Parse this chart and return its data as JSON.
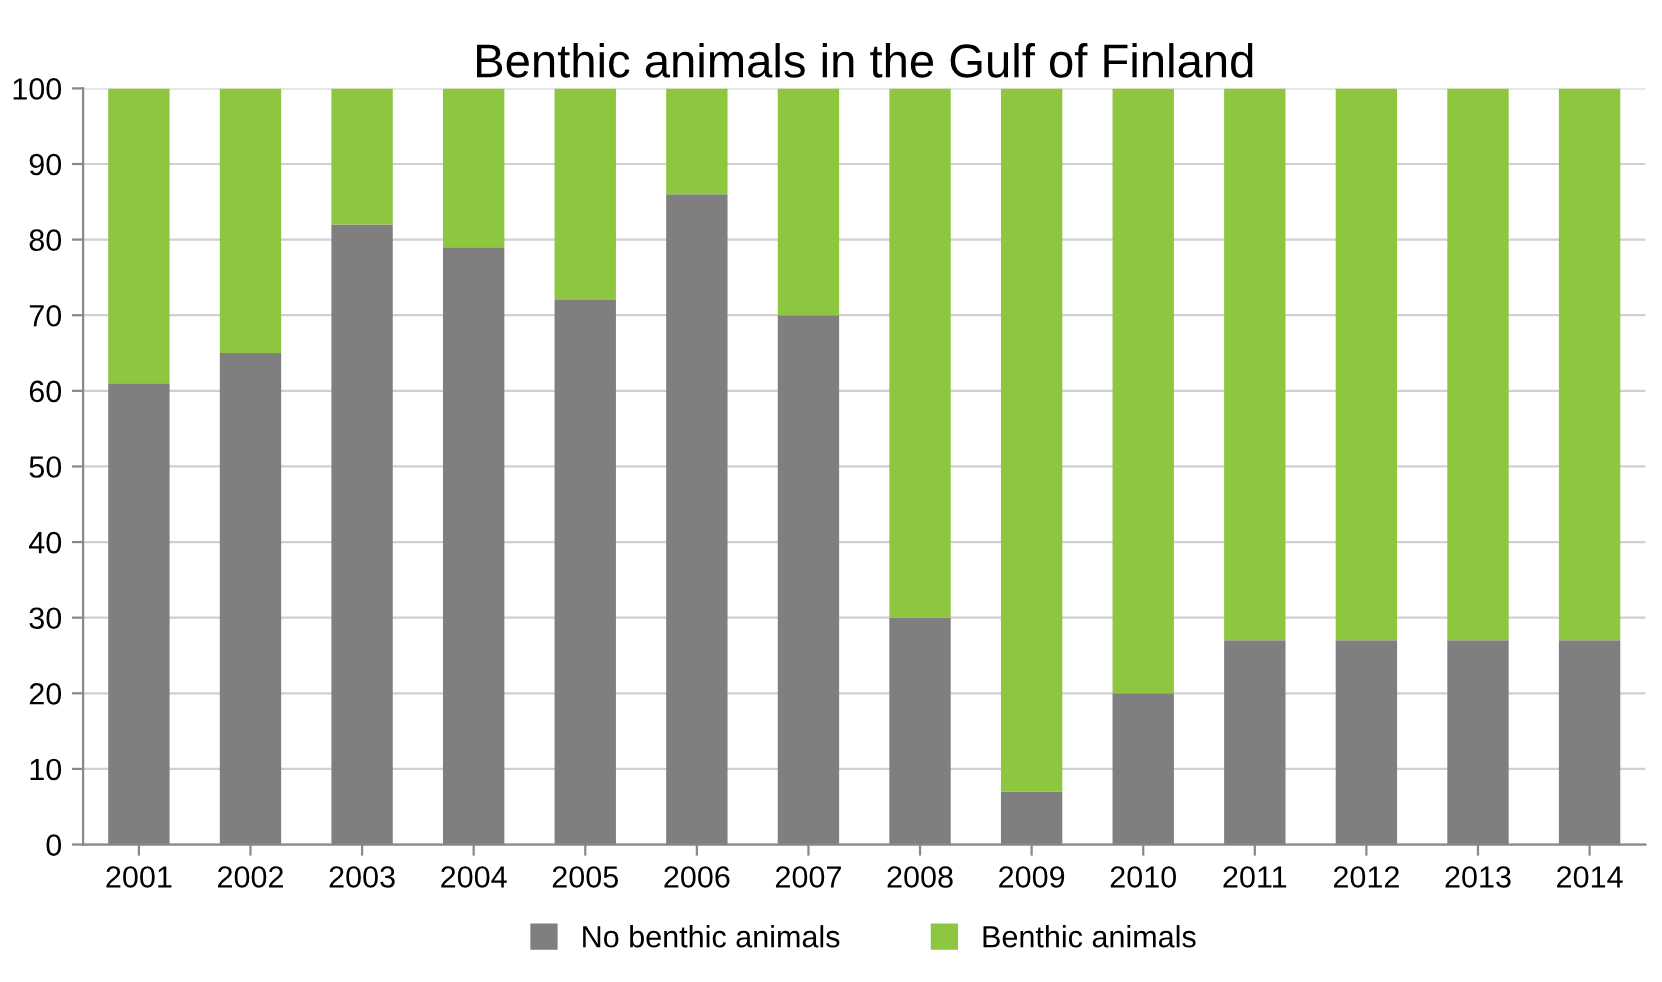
{
  "chart_data": {
    "type": "bar",
    "title": "Benthic animals in the Gulf of Finland",
    "categories": [
      "2001",
      "2002",
      "2003",
      "2004",
      "2005",
      "2006",
      "2007",
      "2008",
      "2009",
      "2010",
      "2011",
      "2012",
      "2013",
      "2014"
    ],
    "series": [
      {
        "name": "No benthic animals",
        "color": "#7f7f7f",
        "values": [
          61,
          65,
          82,
          79,
          72,
          86,
          70,
          30,
          7,
          20,
          27,
          27,
          27,
          27
        ]
      },
      {
        "name": "Benthic animals",
        "color": "#8dc63f",
        "values": [
          39,
          35,
          18,
          21,
          28,
          14,
          30,
          70,
          93,
          80,
          73,
          73,
          73,
          73
        ]
      }
    ],
    "stacked": true,
    "ylim": [
      0,
      100
    ],
    "yticks": [
      0,
      10,
      20,
      30,
      40,
      50,
      60,
      70,
      80,
      90,
      100
    ],
    "grid": "y",
    "legend": "bottom"
  }
}
